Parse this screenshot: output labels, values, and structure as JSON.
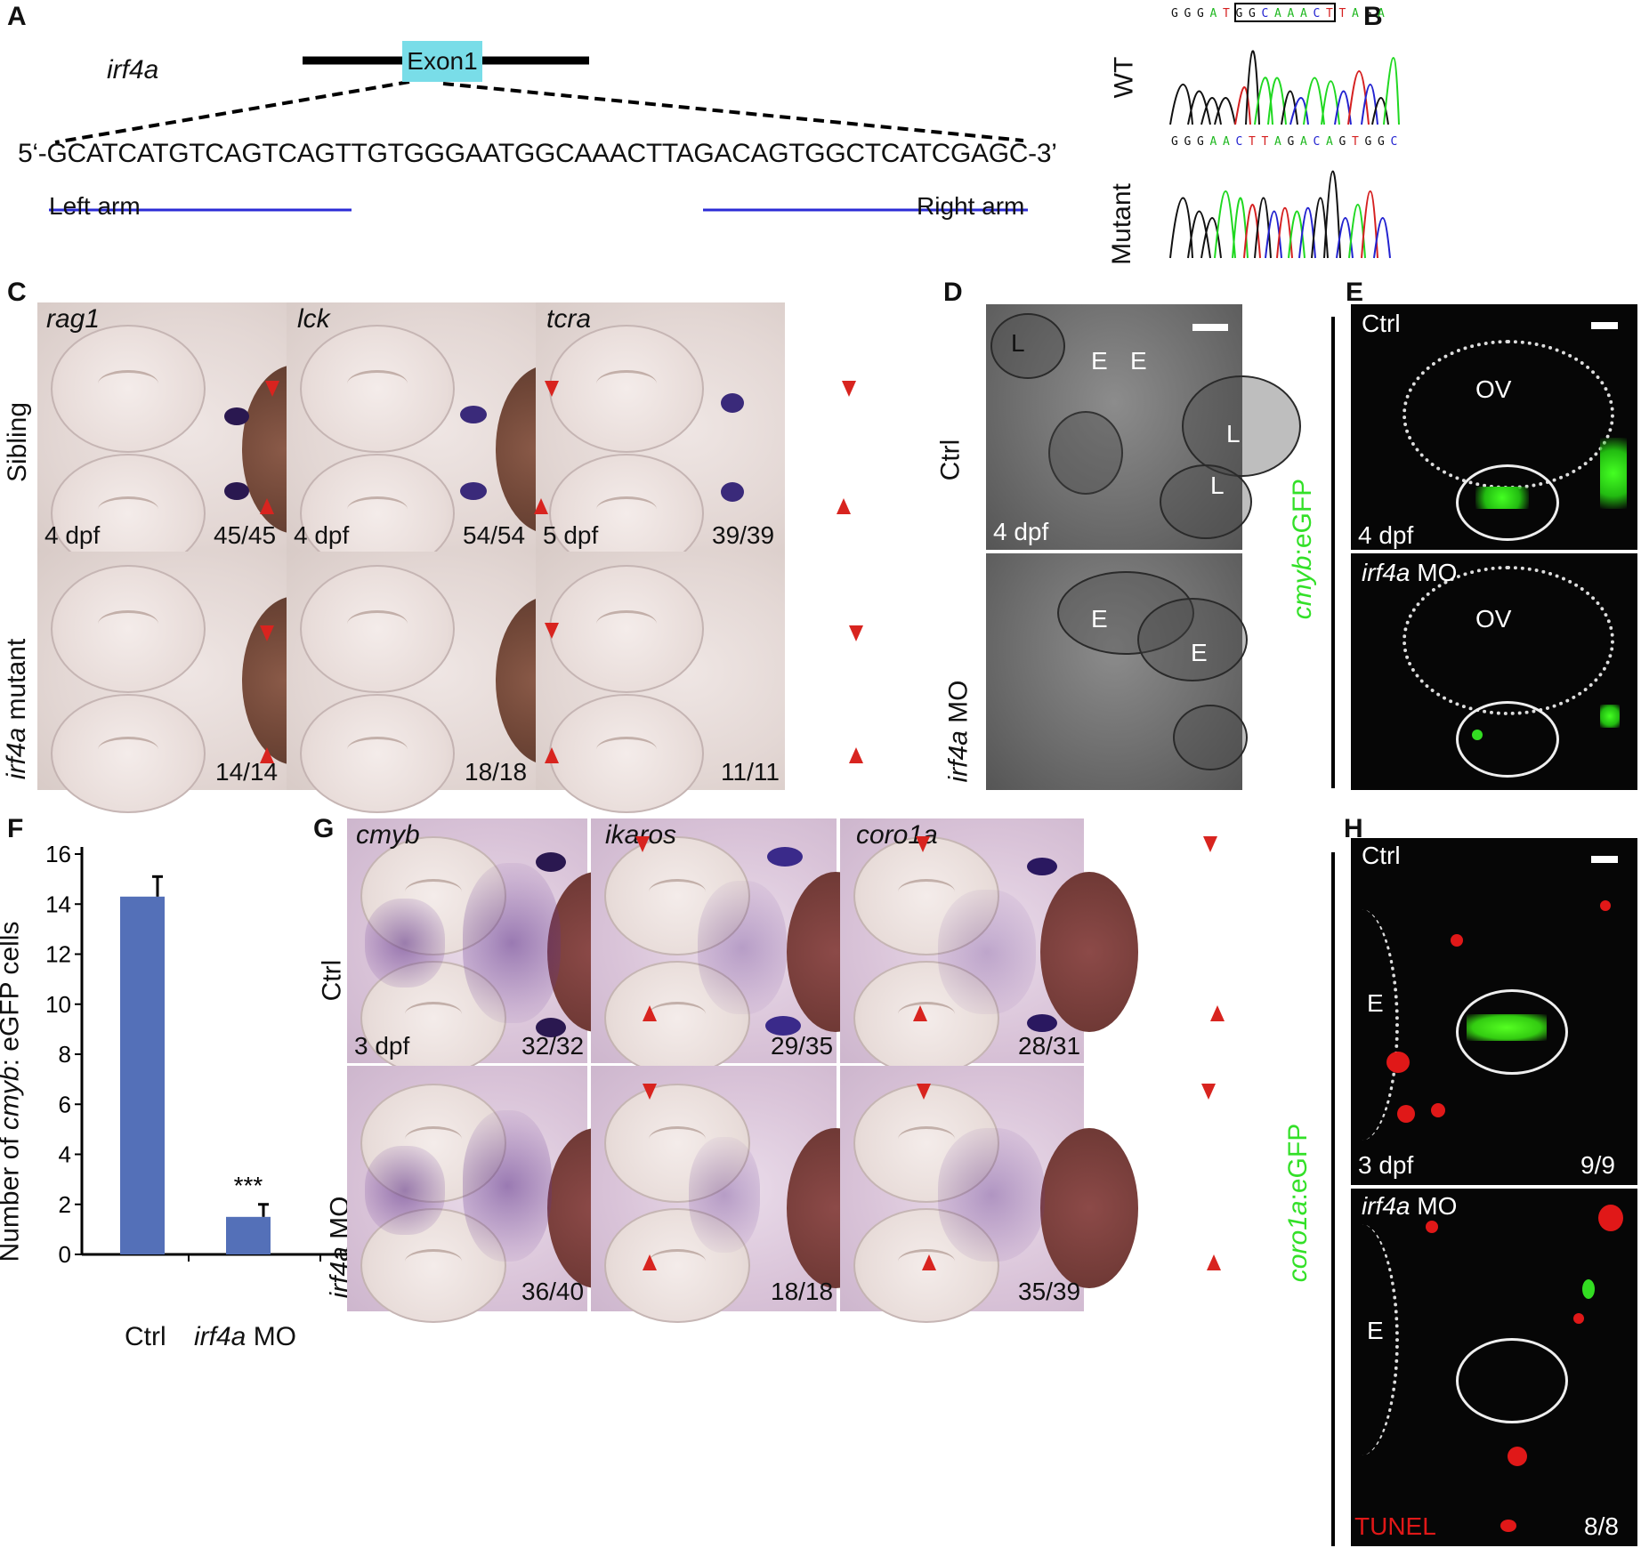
{
  "panel_A": {
    "label": "A",
    "gene": "irf4a",
    "exon": "Exon1",
    "sequence": "5‘-GCATCATGTCAGTCAGTTGTGGGAATGGCAAACTTAGACAGTGGCTCATCGAGC-3’",
    "left_arm": "Left arm",
    "right_arm": "Right arm",
    "exon_color": "#79dde8",
    "arm_color": "#2b2bd6"
  },
  "panel_B": {
    "label": "B",
    "wt_label": "WT",
    "mutant_label": "Mutant",
    "wt_seq": [
      "G",
      "G",
      "G",
      "A",
      "T",
      "G",
      "G",
      "C",
      "A",
      "A",
      "A",
      "C",
      "T",
      "T",
      "A",
      "G",
      "A"
    ],
    "mut_seq": [
      "G",
      "G",
      "G",
      "A",
      "A",
      "C",
      "T",
      "T",
      "A",
      "G",
      "A",
      "C",
      "A",
      "G",
      "T",
      "G",
      "G",
      "C"
    ]
  },
  "panel_C": {
    "label": "C",
    "row_labels": [
      "Sibling",
      "irf4a mutant"
    ],
    "row2_gene": "irf4a",
    "row2_suffix": " mutant",
    "columns": [
      {
        "gene": "rag1",
        "stage": "4 dpf",
        "sibling_count": "45/45",
        "mutant_count": "14/14"
      },
      {
        "gene": "lck",
        "stage": "4 dpf",
        "sibling_count": "54/54",
        "mutant_count": "18/18"
      },
      {
        "gene": "tcra",
        "stage": "5 dpf",
        "sibling_count": "39/39",
        "mutant_count": "11/11"
      }
    ]
  },
  "panel_D": {
    "label": "D",
    "row1": "Ctrl",
    "row2_gene": "irf4a",
    "row2_suffix": " MO",
    "stage": "4 dpf",
    "top_labels": [
      "L",
      "E",
      "E",
      "L",
      "L"
    ],
    "bottom_labels": [
      "E",
      "E"
    ]
  },
  "panel_E": {
    "label": "E",
    "side_label_gene": "cmyb",
    "side_label_suffix": ":eGFP",
    "top": "Ctrl",
    "bottom_gene": "irf4a",
    "bottom_suffix": " MO",
    "ov": "OV",
    "stage": "4 dpf"
  },
  "panel_F": {
    "label": "F",
    "ylabel_pre": "Number of ",
    "ylabel_gene": "cmyb",
    "ylabel_post": ": eGFP cells",
    "significance": "***"
  },
  "chart_data": {
    "type": "bar",
    "categories": [
      "Ctrl",
      "irf4a MO"
    ],
    "values": [
      14.3,
      1.5
    ],
    "errors": [
      0.8,
      0.5
    ],
    "ylim": [
      0,
      16
    ],
    "yticks": [
      "0",
      "2",
      "4",
      "6",
      "8",
      "10",
      "12",
      "14",
      "16"
    ],
    "ylabel": "Number of cmyb: eGFP cells",
    "bar_color": "#5470b8"
  },
  "panel_G": {
    "label": "G",
    "row_labels": [
      "Ctrl",
      "irf4a MO"
    ],
    "row2_gene": "irf4a",
    "row2_suffix": " MO",
    "stage": "3 dpf",
    "columns": [
      {
        "gene": "cmyb",
        "ctrl_count": "32/32",
        "mo_count": "36/40"
      },
      {
        "gene": "ikaros",
        "ctrl_count": "29/35",
        "mo_count": "18/18"
      },
      {
        "gene": "coro1a",
        "ctrl_count": "28/31",
        "mo_count": "35/39"
      }
    ]
  },
  "panel_H": {
    "label": "H",
    "side_label_gene": "coro1a",
    "side_label_suffix": ":eGFP",
    "top": "Ctrl",
    "bottom_gene": "irf4a",
    "bottom_suffix": " MO",
    "e_label": "E",
    "stage": "3 dpf",
    "ctrl_count": "9/9",
    "mo_count": "8/8",
    "tunel": "TUNEL"
  }
}
